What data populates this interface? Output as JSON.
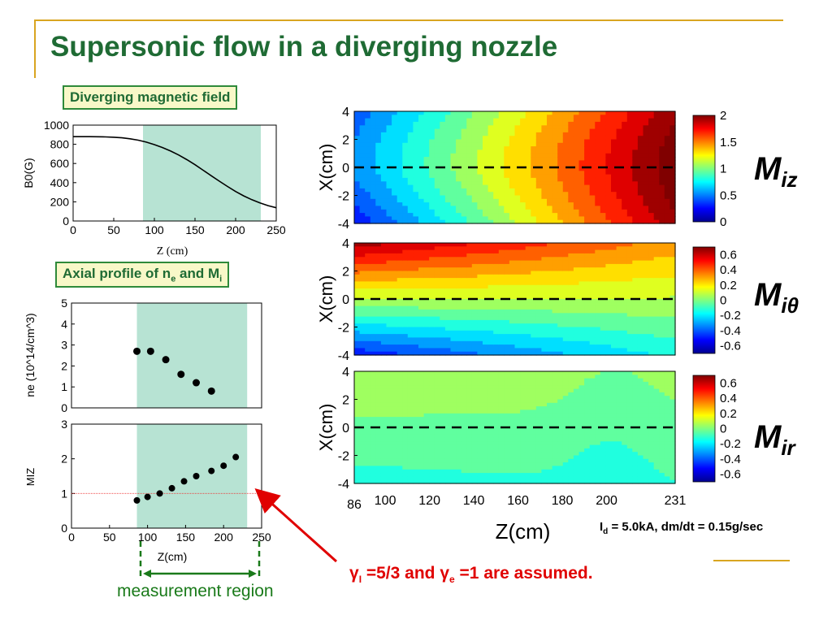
{
  "slide": {
    "title": "Supersonic flow in a diverging nozzle",
    "label_field": "Diverging magnetic field",
    "label_axial": "Axial profile of n",
    "label_axial_sub1": "e",
    "label_axial_mid": " and M",
    "label_axial_sub2": "i",
    "mach_labels": [
      {
        "main": "M",
        "sub": "iz"
      },
      {
        "main": "M",
        "sub": "iθ"
      },
      {
        "main": "M",
        "sub": "ir"
      }
    ],
    "conditions": {
      "main": "I",
      "sub": "d",
      "rest": " = 5.0kA, dm/dt = 0.15g/sec"
    },
    "assumption": {
      "gamma_i": "γ",
      "sub_i": "I",
      "mid": " =5/3 and ",
      "gamma_e": "γ",
      "sub_e": "e",
      "rest": " =1 are assumed."
    },
    "measurement_label": "measurement region",
    "colors": {
      "title": "#1f6b34",
      "box_border": "#2e8a3a",
      "box_fill": "#f8f8c8",
      "deco": "#d9a520",
      "shade": "#b7e3d3",
      "arrow": "#e00000",
      "measure": "#1a7a1a"
    }
  },
  "chart_data": [
    {
      "type": "line",
      "title": "",
      "xlabel": "Z (cm)",
      "ylabel": "B0(G)",
      "xlim": [
        0,
        250
      ],
      "ylim": [
        0,
        1000
      ],
      "xticks": [
        "0",
        "50",
        "100",
        "150",
        "200",
        "250"
      ],
      "yticks": [
        "0",
        "200",
        "400",
        "600",
        "800",
        "1000"
      ],
      "shaded_region": [
        86,
        231
      ],
      "series": [
        {
          "x": [
            0,
            10,
            20,
            30,
            40,
            50,
            60,
            70,
            80,
            90,
            100,
            110,
            120,
            130,
            140,
            150,
            160,
            170,
            180,
            190,
            200,
            210,
            220,
            230,
            240,
            250
          ],
          "values": [
            880,
            880,
            880,
            879,
            877,
            874,
            868,
            858,
            843,
            823,
            797,
            766,
            730,
            688,
            640,
            587,
            530,
            472,
            415,
            360,
            308,
            262,
            222,
            188,
            160,
            138
          ]
        }
      ]
    },
    {
      "type": "scatter",
      "title": "",
      "xlabel": "",
      "ylabel": "ne (10^14/cm^3)",
      "xlim": [
        0,
        250
      ],
      "ylim": [
        0,
        5
      ],
      "yticks": [
        "0",
        "1",
        "2",
        "3",
        "4",
        "5"
      ],
      "shaded_region": [
        86,
        231
      ],
      "series": [
        {
          "x": [
            86,
            104,
            124,
            144,
            164,
            184
          ],
          "values": [
            2.7,
            2.7,
            2.3,
            1.6,
            1.2,
            0.8
          ]
        }
      ]
    },
    {
      "type": "scatter",
      "title": "",
      "xlabel": "Z(cm)",
      "ylabel": "MIZ",
      "xlim": [
        0,
        250
      ],
      "ylim": [
        0,
        3
      ],
      "xticks": [
        "0",
        "50",
        "100",
        "150",
        "200",
        "250"
      ],
      "yticks": [
        "0",
        "1",
        "2",
        "3"
      ],
      "reference_line": 1,
      "shaded_region": [
        86,
        231
      ],
      "series": [
        {
          "x": [
            86,
            100,
            116,
            132,
            148,
            164,
            184,
            200,
            216
          ],
          "values": [
            0.8,
            0.9,
            1.0,
            1.15,
            1.35,
            1.5,
            1.65,
            1.8,
            2.05
          ]
        }
      ]
    },
    {
      "type": "heatmap",
      "name": "Miz",
      "xlabel": "",
      "ylabel": "X(cm)",
      "xlim": [
        86,
        231
      ],
      "ylim": [
        -4,
        4
      ],
      "yticks": [
        "-4",
        "-2",
        "0",
        "2",
        "4"
      ],
      "colorbar_ticks": [
        "0",
        "0.5",
        "1",
        "1.5",
        "2"
      ],
      "clim": [
        0,
        2
      ],
      "dashed_line_x_cm": 0
    },
    {
      "type": "heatmap",
      "name": "Miθ",
      "xlabel": "",
      "ylabel": "X(cm)",
      "xlim": [
        86,
        231
      ],
      "ylim": [
        -4,
        4
      ],
      "yticks": [
        "-4",
        "-2",
        "0",
        "2",
        "4"
      ],
      "colorbar_ticks": [
        "0.6",
        "0.4",
        "0.2",
        "0",
        "-0.2",
        "-0.4",
        "-0.6"
      ],
      "clim": [
        -0.7,
        0.7
      ],
      "dashed_line_x_cm": 0
    },
    {
      "type": "heatmap",
      "name": "Mir",
      "xlabel": "Z(cm)",
      "ylabel": "X(cm)",
      "xlim": [
        86,
        231
      ],
      "ylim": [
        -4,
        4
      ],
      "xticks": [
        "86",
        "100",
        "120",
        "140",
        "160",
        "180",
        "200",
        "231"
      ],
      "yticks": [
        "-4",
        "-2",
        "0",
        "2",
        "4"
      ],
      "colorbar_ticks": [
        "0.6",
        "0.4",
        "0.2",
        "0",
        "-0.2",
        "-0.4",
        "-0.6"
      ],
      "clim": [
        -0.7,
        0.7
      ],
      "dashed_line_x_cm": 0
    }
  ]
}
